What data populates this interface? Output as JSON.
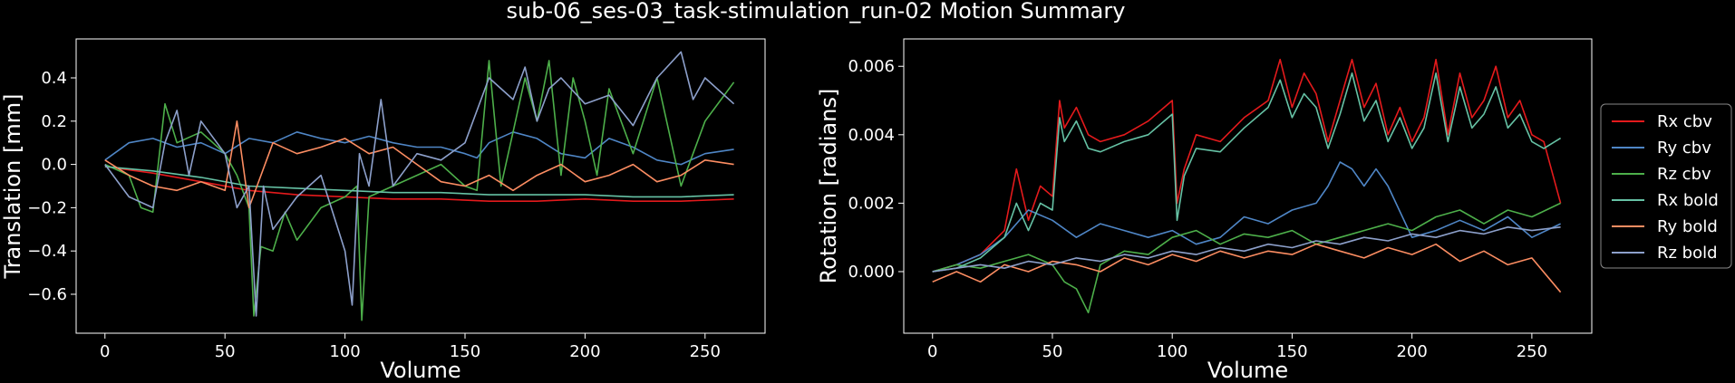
{
  "figure": {
    "title": "sub-06_ses-03_task-stimulation_run-02 Motion Summary",
    "legend_placement": "right"
  },
  "colors": {
    "Rx cbv": "#e41a1c",
    "Ry cbv": "#4f86c6",
    "Rz cbv": "#4daf4a",
    "Rx bold": "#66c2a5",
    "Ry bold": "#fc8d62",
    "Rz bold": "#8da0cb"
  },
  "legend": [
    "Rx cbv",
    "Ry cbv",
    "Rz cbv",
    "Rx bold",
    "Ry bold",
    "Rz bold"
  ],
  "chart_data": [
    {
      "type": "line",
      "xlabel": "Volume",
      "ylabel": "Translation [mm]",
      "xlim": [
        -12,
        275
      ],
      "ylim": [
        -0.78,
        0.58
      ],
      "xticks": [
        0,
        50,
        100,
        150,
        200,
        250
      ],
      "yticks": [
        -0.6,
        -0.4,
        -0.2,
        0.0,
        0.2,
        0.4
      ],
      "ytick_labels": [
        "−0.6",
        "−0.4",
        "−0.2",
        "0.0",
        "0.2",
        "0.4"
      ],
      "grid": false,
      "series": [
        {
          "name": "Rx cbv",
          "x": [
            0,
            20,
            40,
            60,
            80,
            100,
            120,
            140,
            160,
            180,
            200,
            220,
            240,
            262
          ],
          "y": [
            -0.01,
            -0.04,
            -0.08,
            -0.12,
            -0.14,
            -0.15,
            -0.16,
            -0.16,
            -0.17,
            -0.17,
            -0.16,
            -0.17,
            -0.17,
            -0.16
          ]
        },
        {
          "name": "Ry cbv",
          "x": [
            0,
            10,
            20,
            30,
            40,
            50,
            60,
            70,
            80,
            90,
            100,
            110,
            120,
            130,
            140,
            150,
            155,
            160,
            170,
            180,
            190,
            200,
            210,
            220,
            230,
            240,
            250,
            262
          ],
          "y": [
            0.02,
            0.1,
            0.12,
            0.08,
            0.1,
            0.05,
            0.12,
            0.1,
            0.15,
            0.12,
            0.1,
            0.13,
            0.1,
            0.08,
            0.08,
            0.05,
            0.03,
            0.1,
            0.15,
            0.12,
            0.05,
            0.03,
            0.12,
            0.08,
            0.02,
            0.0,
            0.05,
            0.07
          ]
        },
        {
          "name": "Rz cbv",
          "x": [
            0,
            10,
            15,
            20,
            25,
            30,
            40,
            50,
            55,
            60,
            62,
            65,
            70,
            75,
            80,
            90,
            100,
            105,
            107,
            110,
            120,
            130,
            140,
            150,
            155,
            160,
            165,
            170,
            175,
            180,
            185,
            190,
            195,
            200,
            205,
            210,
            220,
            230,
            240,
            250,
            262
          ],
          "y": [
            0.0,
            -0.05,
            -0.2,
            -0.22,
            0.28,
            0.1,
            0.15,
            0.05,
            -0.05,
            -0.2,
            -0.7,
            -0.38,
            -0.4,
            -0.22,
            -0.35,
            -0.2,
            -0.15,
            -0.1,
            -0.72,
            -0.15,
            -0.1,
            -0.05,
            0.0,
            -0.1,
            -0.12,
            0.48,
            -0.1,
            0.15,
            0.4,
            0.2,
            0.48,
            -0.05,
            0.4,
            0.2,
            -0.05,
            0.35,
            0.05,
            0.4,
            -0.1,
            0.2,
            0.38
          ]
        },
        {
          "name": "Rx bold",
          "x": [
            0,
            20,
            40,
            60,
            80,
            100,
            120,
            140,
            160,
            180,
            200,
            220,
            240,
            262
          ],
          "y": [
            -0.01,
            -0.03,
            -0.06,
            -0.1,
            -0.11,
            -0.12,
            -0.13,
            -0.13,
            -0.14,
            -0.14,
            -0.14,
            -0.15,
            -0.15,
            -0.14
          ]
        },
        {
          "name": "Ry bold",
          "x": [
            0,
            10,
            20,
            30,
            40,
            50,
            55,
            60,
            65,
            70,
            80,
            90,
            100,
            110,
            120,
            130,
            140,
            150,
            160,
            170,
            180,
            190,
            200,
            210,
            220,
            230,
            240,
            250,
            262
          ],
          "y": [
            0.02,
            -0.05,
            -0.1,
            -0.12,
            -0.08,
            -0.12,
            0.2,
            -0.2,
            -0.05,
            0.1,
            0.05,
            0.08,
            0.12,
            0.05,
            0.08,
            0.0,
            -0.08,
            -0.1,
            -0.05,
            -0.12,
            -0.05,
            0.0,
            -0.08,
            -0.05,
            0.0,
            -0.08,
            -0.05,
            0.02,
            0.0
          ]
        },
        {
          "name": "Rz bold",
          "x": [
            0,
            10,
            20,
            25,
            30,
            35,
            40,
            50,
            55,
            60,
            63,
            66,
            70,
            80,
            90,
            100,
            103,
            106,
            110,
            115,
            120,
            130,
            140,
            150,
            160,
            170,
            175,
            180,
            185,
            190,
            200,
            210,
            220,
            230,
            240,
            245,
            250,
            262
          ],
          "y": [
            0.0,
            -0.15,
            -0.2,
            0.1,
            0.25,
            -0.05,
            0.2,
            0.05,
            -0.2,
            -0.1,
            -0.7,
            -0.1,
            -0.3,
            -0.15,
            -0.05,
            -0.4,
            -0.65,
            0.05,
            -0.1,
            0.3,
            -0.1,
            0.05,
            0.02,
            0.1,
            0.4,
            0.3,
            0.45,
            0.2,
            0.35,
            0.4,
            0.28,
            0.32,
            0.18,
            0.4,
            0.52,
            0.3,
            0.4,
            0.28
          ]
        }
      ]
    },
    {
      "type": "line",
      "xlabel": "Volume",
      "ylabel": "Rotation [radians]",
      "xlim": [
        -12,
        275
      ],
      "ylim": [
        -0.0018,
        0.0068
      ],
      "xticks": [
        0,
        50,
        100,
        150,
        200,
        250
      ],
      "yticks": [
        0.0,
        0.002,
        0.004,
        0.006
      ],
      "ytick_labels": [
        "0.000",
        "0.002",
        "0.004",
        "0.006"
      ],
      "grid": false,
      "series": [
        {
          "name": "Rx cbv",
          "x": [
            0,
            10,
            20,
            30,
            35,
            40,
            45,
            50,
            53,
            55,
            60,
            65,
            70,
            80,
            90,
            100,
            102,
            105,
            110,
            120,
            130,
            140,
            145,
            150,
            155,
            160,
            165,
            170,
            175,
            180,
            185,
            190,
            195,
            200,
            205,
            210,
            215,
            220,
            225,
            230,
            235,
            240,
            245,
            250,
            255,
            262
          ],
          "y": [
            0.0,
            0.0002,
            0.0005,
            0.0012,
            0.003,
            0.0015,
            0.0025,
            0.0022,
            0.005,
            0.0042,
            0.0048,
            0.004,
            0.0038,
            0.004,
            0.0044,
            0.005,
            0.002,
            0.003,
            0.004,
            0.0038,
            0.0045,
            0.005,
            0.0062,
            0.0048,
            0.0058,
            0.0052,
            0.0038,
            0.005,
            0.0062,
            0.0048,
            0.0055,
            0.004,
            0.0048,
            0.0038,
            0.0045,
            0.0062,
            0.004,
            0.0058,
            0.0045,
            0.005,
            0.006,
            0.0045,
            0.005,
            0.004,
            0.0038,
            0.002
          ]
        },
        {
          "name": "Ry cbv",
          "x": [
            0,
            10,
            20,
            30,
            40,
            50,
            60,
            70,
            80,
            90,
            100,
            110,
            120,
            130,
            140,
            150,
            160,
            165,
            170,
            175,
            180,
            185,
            190,
            200,
            210,
            220,
            230,
            240,
            250,
            262
          ],
          "y": [
            0.0,
            0.0002,
            0.0005,
            0.001,
            0.0018,
            0.0015,
            0.001,
            0.0014,
            0.0012,
            0.001,
            0.0012,
            0.0008,
            0.001,
            0.0016,
            0.0014,
            0.0018,
            0.002,
            0.0025,
            0.0032,
            0.003,
            0.0025,
            0.003,
            0.0025,
            0.001,
            0.0012,
            0.0015,
            0.0012,
            0.0016,
            0.001,
            0.0014
          ]
        },
        {
          "name": "Rz cbv",
          "x": [
            0,
            10,
            20,
            30,
            40,
            50,
            55,
            60,
            65,
            70,
            80,
            90,
            100,
            110,
            120,
            130,
            140,
            150,
            160,
            170,
            180,
            190,
            200,
            210,
            220,
            230,
            240,
            250,
            262
          ],
          "y": [
            0.0,
            0.0002,
            0.0001,
            0.0003,
            0.0005,
            0.0002,
            -0.0003,
            -0.0005,
            -0.0012,
            0.0002,
            0.0006,
            0.0005,
            0.001,
            0.0012,
            0.0008,
            0.0011,
            0.001,
            0.0012,
            0.0008,
            0.001,
            0.0012,
            0.0014,
            0.0012,
            0.0016,
            0.0018,
            0.0014,
            0.0018,
            0.0016,
            0.002
          ]
        },
        {
          "name": "Rx bold",
          "x": [
            0,
            10,
            20,
            30,
            35,
            40,
            45,
            50,
            53,
            55,
            60,
            65,
            70,
            80,
            90,
            100,
            102,
            105,
            110,
            120,
            130,
            140,
            145,
            150,
            155,
            160,
            165,
            170,
            175,
            180,
            185,
            190,
            195,
            200,
            205,
            210,
            215,
            220,
            225,
            230,
            235,
            240,
            245,
            250,
            255,
            262
          ],
          "y": [
            0.0,
            0.0001,
            0.0004,
            0.001,
            0.002,
            0.0012,
            0.002,
            0.0018,
            0.0045,
            0.0038,
            0.0044,
            0.0036,
            0.0035,
            0.0038,
            0.004,
            0.0046,
            0.0015,
            0.0028,
            0.0036,
            0.0035,
            0.0042,
            0.0048,
            0.0056,
            0.0045,
            0.0052,
            0.0048,
            0.0036,
            0.0046,
            0.0058,
            0.0044,
            0.005,
            0.0038,
            0.0045,
            0.0036,
            0.0042,
            0.0058,
            0.0038,
            0.0054,
            0.0042,
            0.0046,
            0.0054,
            0.0042,
            0.0046,
            0.0038,
            0.0036,
            0.0039
          ]
        },
        {
          "name": "Ry bold",
          "x": [
            0,
            10,
            20,
            30,
            40,
            50,
            60,
            70,
            80,
            90,
            100,
            110,
            120,
            130,
            140,
            150,
            160,
            170,
            180,
            190,
            200,
            210,
            220,
            230,
            240,
            250,
            262
          ],
          "y": [
            -0.0003,
            0.0,
            -0.0003,
            0.0002,
            0.0,
            0.0003,
            0.0002,
            0.0,
            0.0004,
            0.0002,
            0.0005,
            0.0003,
            0.0006,
            0.0004,
            0.0006,
            0.0005,
            0.0008,
            0.0006,
            0.0004,
            0.0007,
            0.0005,
            0.0008,
            0.0003,
            0.0006,
            0.0002,
            0.0004,
            -0.0006
          ]
        },
        {
          "name": "Rz bold",
          "x": [
            0,
            10,
            20,
            30,
            40,
            50,
            60,
            70,
            80,
            90,
            100,
            110,
            120,
            130,
            140,
            150,
            160,
            170,
            180,
            190,
            200,
            210,
            220,
            230,
            240,
            250,
            262
          ],
          "y": [
            0.0,
            0.0001,
            0.0002,
            0.0001,
            0.0003,
            0.0002,
            0.0004,
            0.0003,
            0.0005,
            0.0004,
            0.0006,
            0.0005,
            0.0007,
            0.0006,
            0.0008,
            0.0007,
            0.0009,
            0.0008,
            0.001,
            0.0009,
            0.0011,
            0.001,
            0.0012,
            0.0011,
            0.0013,
            0.0012,
            0.0013
          ]
        }
      ]
    }
  ]
}
